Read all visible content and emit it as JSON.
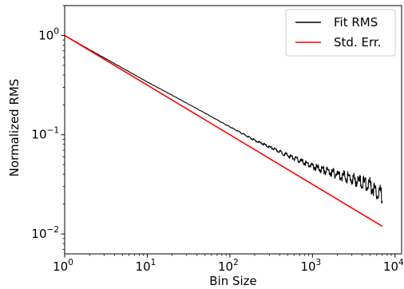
{
  "chart_data": {
    "type": "line",
    "title": "",
    "xlabel": "Bin Size",
    "ylabel": "Normalized RMS",
    "x_scale": "log",
    "y_scale": "log",
    "xlim": [
      1,
      12000
    ],
    "ylim": [
      0.0063,
      2.0
    ],
    "grid": false,
    "legend_position": "top-right",
    "x_ticks": [
      {
        "base": "10",
        "exp": "0",
        "value": 1
      },
      {
        "base": "10",
        "exp": "1",
        "value": 10
      },
      {
        "base": "10",
        "exp": "2",
        "value": 100
      },
      {
        "base": "10",
        "exp": "3",
        "value": 1000
      },
      {
        "base": "10",
        "exp": "4",
        "value": 10000
      }
    ],
    "y_ticks": [
      {
        "base": "10",
        "exp": "0",
        "value": 1
      },
      {
        "base": "10",
        "exp": "−1",
        "value": 0.1
      },
      {
        "base": "10",
        "exp": "−2",
        "value": 0.01
      }
    ],
    "series": [
      {
        "name": "Fit RMS",
        "color": "#000000",
        "x": [
          1,
          2,
          5,
          10,
          20,
          50,
          100,
          200,
          500,
          1000,
          1500,
          2000,
          3000,
          4000,
          5000,
          6000,
          7000
        ],
        "y": [
          1.0,
          0.72,
          0.47,
          0.34,
          0.25,
          0.165,
          0.12,
          0.088,
          0.062,
          0.048,
          0.043,
          0.04,
          0.036,
          0.033,
          0.031,
          0.027,
          0.025
        ]
      },
      {
        "name": "Std. Err.",
        "color": "#ff0000",
        "x": [
          1,
          7000
        ],
        "y": [
          1.0,
          0.01195
        ]
      }
    ]
  }
}
